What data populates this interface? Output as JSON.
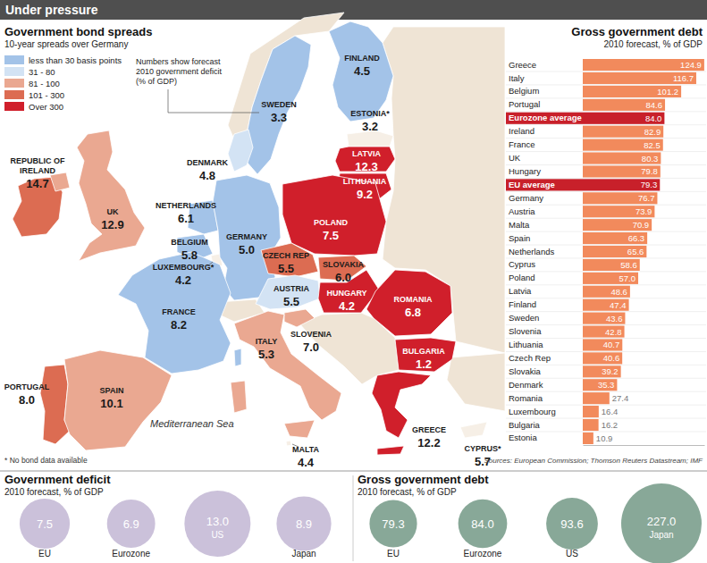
{
  "title": "Under pressure",
  "sources": "Sources: European Commission; Thomson Reuters Datastream; IMF",
  "chart_data": [
    {
      "type": "map",
      "title": "Government bond spreads",
      "subtitle": "10-year spreads over Germany",
      "annotation": [
        "Numbers show forecast",
        "2010 government deficit",
        "(% of GDP)"
      ],
      "sea_label": "Mediterranean Sea",
      "footnote": "* No bond data available",
      "legend": "top-left",
      "classes": [
        {
          "name": "less than 30 basis points",
          "color": "#a3c3e8"
        },
        {
          "name": "31 - 80",
          "color": "#d3e3f4"
        },
        {
          "name": "81 - 100",
          "color": "#eaa891"
        },
        {
          "name": "101 - 300",
          "color": "#dc6c52"
        },
        {
          "name": "Over 300",
          "color": "#d01f2b"
        }
      ],
      "categories": [
        "FINLAND",
        "SWEDEN",
        "ESTONIA*",
        "LATVIA",
        "LITHUANIA",
        "DENMARK",
        "REPUBLIC OF IRELAND",
        "UK",
        "NETHERLANDS",
        "BELGIUM",
        "LUXEMBOURG*",
        "GERMANY",
        "POLAND",
        "CZECH REP",
        "SLOVAKIA",
        "FRANCE",
        "AUSTRIA",
        "HUNGARY",
        "SLOVENIA",
        "ITALY",
        "ROMANIA",
        "BULGARIA",
        "PORTUGAL",
        "SPAIN",
        "GREECE",
        "MALTA",
        "CYPRUS*"
      ],
      "values": [
        4.5,
        3.3,
        3.2,
        12.3,
        9.2,
        4.8,
        14.7,
        12.9,
        6.1,
        5.8,
        4.2,
        5.0,
        7.5,
        5.5,
        6.0,
        8.2,
        5.5,
        4.2,
        7.0,
        5.3,
        6.8,
        1.2,
        8.0,
        10.1,
        12.2,
        4.4,
        5.7
      ],
      "value_labels": [
        "4.5",
        "3.3",
        "3.2",
        "12.3",
        "9.2",
        "4.8",
        "14.7",
        "12.9",
        "6.1",
        "5.8",
        "4.2",
        "5.0",
        "7.5",
        "5.5",
        "6.0",
        "8.2",
        "5.5",
        "4.2",
        "7.0",
        "5.3",
        "6.8",
        "1.2",
        "8.0",
        "10.1",
        "12.2",
        "4.4",
        "5.7"
      ],
      "spread_class": [
        0,
        0,
        null,
        4,
        4,
        1,
        3,
        2,
        0,
        0,
        null,
        0,
        4,
        3,
        3,
        0,
        1,
        4,
        2,
        2,
        4,
        4,
        3,
        2,
        4,
        null,
        null
      ],
      "data_labels": true
    },
    {
      "type": "bar",
      "title": "Gross government debt",
      "subtitle": "2010 forecast, % of GDP",
      "orientation": "horizontal",
      "categories": [
        "Greece",
        "Italy",
        "Belgium",
        "Portugal",
        "Eurozone average",
        "Ireland",
        "France",
        "UK",
        "Hungary",
        "EU average",
        "Germany",
        "Austria",
        "Malta",
        "Spain",
        "Netherlands",
        "Cyprus",
        "Poland",
        "Latvia",
        "Finland",
        "Sweden",
        "Slovenia",
        "Lithuania",
        "Czech Rep",
        "Slovakia",
        "Denmark",
        "Romania",
        "Luxembourg",
        "Bulgaria",
        "Estonia"
      ],
      "values": [
        124.9,
        116.7,
        101.2,
        84.6,
        84.0,
        82.9,
        82.5,
        80.3,
        79.8,
        79.3,
        76.7,
        73.9,
        70.9,
        66.3,
        65.6,
        58.6,
        57.0,
        48.6,
        47.4,
        43.6,
        42.8,
        40.7,
        40.6,
        39.2,
        35.3,
        27.4,
        16.4,
        16.2,
        10.9
      ],
      "value_labels": [
        "124.9",
        "116.7",
        "101.2",
        "84.6",
        "84.0",
        "82.9",
        "82.5",
        "80.3",
        "79.8",
        "79.3",
        "76.7",
        "73.9",
        "70.9",
        "66.3",
        "65.6",
        "58.6",
        "57.0",
        "48.6",
        "47.4",
        "43.6",
        "42.8",
        "40.7",
        "40.6",
        "39.2",
        "35.3",
        "27.4",
        "16.4",
        "16.2",
        "10.9"
      ],
      "color": "#f28a5c",
      "colors": [
        "#f28a5c",
        "#f28a5c",
        "#f28a5c",
        "#f28a5c",
        "#c8202a",
        "#f28a5c",
        "#f28a5c",
        "#f28a5c",
        "#f28a5c",
        "#c8202a",
        "#f28a5c",
        "#f28a5c",
        "#f28a5c",
        "#f28a5c",
        "#f28a5c",
        "#f28a5c",
        "#f28a5c",
        "#f28a5c",
        "#f28a5c",
        "#f28a5c",
        "#f28a5c",
        "#f28a5c",
        "#f28a5c",
        "#f28a5c",
        "#f28a5c",
        "#f28a5c",
        "#f28a5c",
        "#f28a5c",
        "#f28a5c"
      ],
      "xlim": [
        0,
        125
      ],
      "xticks": [],
      "tick_labels": "y",
      "data_labels": true
    },
    {
      "type": "bubble",
      "title": "Government deficit",
      "subtitle": "2010 forecast, % of GDP",
      "categories": [
        "EU",
        "Eurozone",
        "US",
        "Japan"
      ],
      "values": [
        7.5,
        6.9,
        13.0,
        8.9
      ],
      "value_labels": [
        "7.5",
        "6.9",
        "13.0",
        "8.9"
      ],
      "color": "#cbc1da",
      "data_labels": true
    },
    {
      "type": "bubble",
      "title": "Gross government debt",
      "subtitle": "2010 forecast, % of GDP",
      "categories": [
        "EU",
        "Eurozone",
        "US",
        "Japan"
      ],
      "values": [
        79.3,
        84.0,
        93.6,
        227.0
      ],
      "value_labels": [
        "79.3",
        "84.0",
        "93.6",
        "227.0"
      ],
      "color": "#88a898",
      "data_labels": true
    }
  ]
}
